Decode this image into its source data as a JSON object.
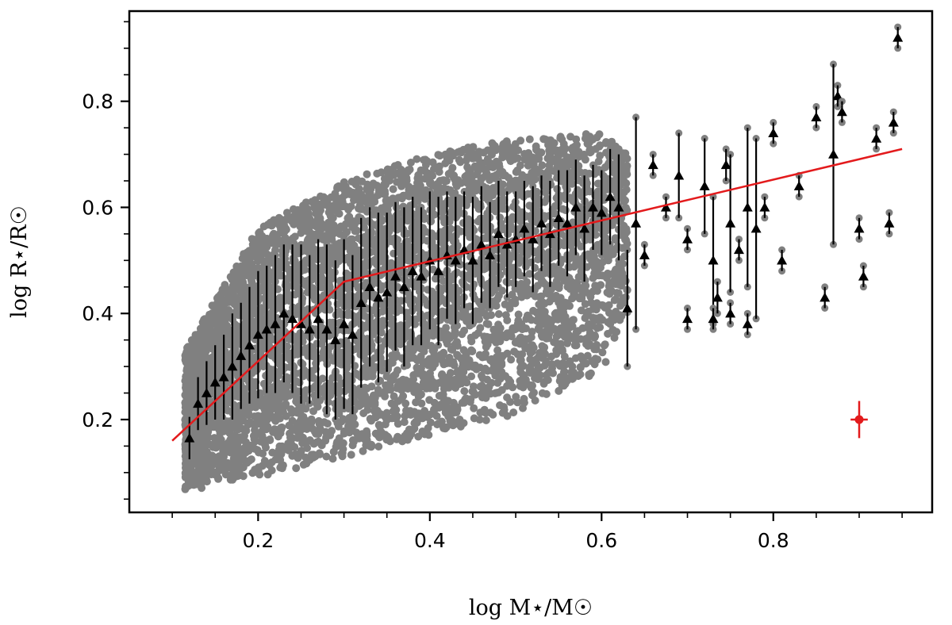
{
  "chart_data": {
    "type": "scatter",
    "title": "",
    "xlabel": "log M⋆/M☉",
    "ylabel": "log R⋆/R☉",
    "xlim": [
      0.05,
      0.985
    ],
    "ylim": [
      0.025,
      0.97
    ],
    "x_major_ticks": [
      0.2,
      0.4,
      0.6,
      0.8
    ],
    "x_tick_labels": [
      "0.2",
      "0.4",
      "0.6",
      "0.8"
    ],
    "y_major_ticks": [
      0.2,
      0.4,
      0.6,
      0.8
    ],
    "y_tick_labels": [
      "0.2",
      "0.4",
      "0.6",
      "0.8"
    ],
    "x_minor_step": 0.05,
    "y_minor_step": 0.05,
    "grid": false,
    "legend": "none",
    "colors": {
      "population": "#808080",
      "measured": "#000000",
      "fit": "#e31a1c",
      "error_marker": "#e31a1c"
    },
    "series": [
      {
        "marker": "circle",
        "color": "#808080",
        "generator": {
          "count": 5200,
          "x_range": [
            0.115,
            0.63
          ],
          "upper_envelope": [
            [
              0.115,
              0.33
            ],
            [
              0.2,
              0.56
            ],
            [
              0.3,
              0.65
            ],
            [
              0.4,
              0.7
            ],
            [
              0.5,
              0.73
            ],
            [
              0.6,
              0.74
            ],
            [
              0.63,
              0.7
            ]
          ],
          "lower_envelope": [
            [
              0.115,
              0.065
            ],
            [
              0.2,
              0.09
            ],
            [
              0.3,
              0.13
            ],
            [
              0.4,
              0.17
            ],
            [
              0.5,
              0.21
            ],
            [
              0.6,
              0.29
            ],
            [
              0.63,
              0.4
            ]
          ]
        }
      },
      {
        "marker": "triangle",
        "color": "#000000",
        "with_error_bars": true,
        "points": [
          [
            0.12,
            0.165,
            0.04
          ],
          [
            0.13,
            0.23,
            0.05
          ],
          [
            0.14,
            0.25,
            0.06
          ],
          [
            0.15,
            0.27,
            0.07
          ],
          [
            0.16,
            0.28,
            0.08
          ],
          [
            0.17,
            0.3,
            0.1
          ],
          [
            0.18,
            0.32,
            0.1
          ],
          [
            0.19,
            0.34,
            0.11
          ],
          [
            0.2,
            0.36,
            0.12
          ],
          [
            0.21,
            0.37,
            0.12
          ],
          [
            0.22,
            0.38,
            0.13
          ],
          [
            0.23,
            0.4,
            0.13
          ],
          [
            0.24,
            0.39,
            0.14
          ],
          [
            0.25,
            0.38,
            0.15
          ],
          [
            0.26,
            0.37,
            0.14
          ],
          [
            0.27,
            0.39,
            0.15
          ],
          [
            0.28,
            0.37,
            0.16
          ],
          [
            0.29,
            0.35,
            0.15
          ],
          [
            0.3,
            0.38,
            0.16
          ],
          [
            0.31,
            0.36,
            0.15
          ],
          [
            0.32,
            0.42,
            0.16
          ],
          [
            0.33,
            0.45,
            0.15
          ],
          [
            0.34,
            0.43,
            0.16
          ],
          [
            0.35,
            0.44,
            0.15
          ],
          [
            0.36,
            0.47,
            0.14
          ],
          [
            0.37,
            0.45,
            0.15
          ],
          [
            0.38,
            0.48,
            0.14
          ],
          [
            0.39,
            0.47,
            0.13
          ],
          [
            0.4,
            0.5,
            0.13
          ],
          [
            0.41,
            0.48,
            0.14
          ],
          [
            0.42,
            0.51,
            0.12
          ],
          [
            0.43,
            0.5,
            0.12
          ],
          [
            0.44,
            0.52,
            0.11
          ],
          [
            0.45,
            0.5,
            0.12
          ],
          [
            0.46,
            0.53,
            0.11
          ],
          [
            0.47,
            0.51,
            0.1
          ],
          [
            0.48,
            0.55,
            0.1
          ],
          [
            0.49,
            0.53,
            0.1
          ],
          [
            0.5,
            0.54,
            0.09
          ],
          [
            0.51,
            0.56,
            0.09
          ],
          [
            0.52,
            0.54,
            0.1
          ],
          [
            0.53,
            0.57,
            0.09
          ],
          [
            0.54,
            0.55,
            0.1
          ],
          [
            0.55,
            0.58,
            0.09
          ],
          [
            0.56,
            0.57,
            0.1
          ],
          [
            0.57,
            0.6,
            0.09
          ],
          [
            0.58,
            0.56,
            0.1
          ],
          [
            0.59,
            0.6,
            0.08
          ],
          [
            0.6,
            0.59,
            0.08
          ],
          [
            0.61,
            0.62,
            0.09
          ],
          [
            0.62,
            0.6,
            0.1
          ],
          [
            0.63,
            0.41,
            0.11
          ],
          [
            0.64,
            0.57,
            0.2
          ],
          [
            0.65,
            0.51,
            0.02
          ],
          [
            0.66,
            0.68,
            0.02
          ],
          [
            0.675,
            0.6,
            0.02
          ],
          [
            0.69,
            0.66,
            0.08
          ],
          [
            0.7,
            0.54,
            0.02
          ],
          [
            0.72,
            0.64,
            0.09
          ],
          [
            0.73,
            0.5,
            0.12
          ],
          [
            0.745,
            0.68,
            0.03
          ],
          [
            0.75,
            0.57,
            0.13
          ],
          [
            0.76,
            0.52,
            0.02
          ],
          [
            0.77,
            0.6,
            0.15
          ],
          [
            0.78,
            0.56,
            0.17
          ],
          [
            0.79,
            0.6,
            0.02
          ],
          [
            0.8,
            0.74,
            0.02
          ],
          [
            0.81,
            0.5,
            0.02
          ],
          [
            0.83,
            0.64,
            0.02
          ],
          [
            0.85,
            0.77,
            0.02
          ],
          [
            0.86,
            0.43,
            0.02
          ],
          [
            0.87,
            0.7,
            0.17
          ],
          [
            0.875,
            0.81,
            0.02
          ],
          [
            0.88,
            0.78,
            0.02
          ],
          [
            0.9,
            0.56,
            0.02
          ],
          [
            0.905,
            0.47,
            0.02
          ],
          [
            0.92,
            0.73,
            0.02
          ],
          [
            0.935,
            0.57,
            0.02
          ],
          [
            0.94,
            0.76,
            0.02
          ],
          [
            0.945,
            0.92,
            0.02
          ],
          [
            0.73,
            0.39,
            0.02
          ],
          [
            0.75,
            0.4,
            0.02
          ],
          [
            0.77,
            0.38,
            0.02
          ],
          [
            0.7,
            0.39,
            0.02
          ],
          [
            0.735,
            0.43,
            0.03
          ]
        ]
      },
      {
        "type": "line",
        "color": "#e31a1c",
        "points": [
          [
            0.1,
            0.16
          ],
          [
            0.3,
            0.46
          ],
          [
            0.95,
            0.71
          ]
        ]
      }
    ],
    "error_marker": {
      "x": 0.9,
      "y": 0.2,
      "xerr": 0.01,
      "yerr": 0.035,
      "color": "#e31a1c"
    }
  }
}
